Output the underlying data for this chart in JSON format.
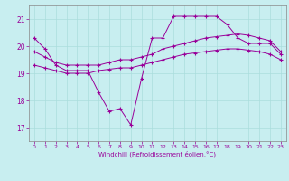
{
  "title": "",
  "xlabel": "Windchill (Refroidissement éolien,°C)",
  "background_color": "#c8eef0",
  "line_color": "#990099",
  "grid_color": "#aadddd",
  "xlim": [
    -0.5,
    23.5
  ],
  "ylim": [
    16.5,
    21.5
  ],
  "xticks": [
    0,
    1,
    2,
    3,
    4,
    5,
    6,
    7,
    8,
    9,
    10,
    11,
    12,
    13,
    14,
    15,
    16,
    17,
    18,
    19,
    20,
    21,
    22,
    23
  ],
  "yticks": [
    17,
    18,
    19,
    20,
    21
  ],
  "line1_x": [
    0,
    1,
    2,
    3,
    4,
    5,
    6,
    7,
    8,
    9,
    10,
    11,
    12,
    13,
    14,
    15,
    16,
    17,
    18,
    19,
    20,
    21,
    22,
    23
  ],
  "line1_y": [
    20.3,
    19.9,
    19.3,
    19.1,
    19.1,
    19.1,
    18.3,
    17.6,
    17.7,
    17.1,
    18.8,
    20.3,
    20.3,
    21.1,
    21.1,
    21.1,
    21.1,
    21.1,
    20.8,
    20.3,
    20.1,
    20.1,
    20.1,
    19.7
  ],
  "line2_x": [
    0,
    1,
    2,
    3,
    4,
    5,
    6,
    7,
    8,
    9,
    10,
    11,
    12,
    13,
    14,
    15,
    16,
    17,
    18,
    19,
    20,
    21,
    22,
    23
  ],
  "line2_y": [
    19.8,
    19.6,
    19.4,
    19.3,
    19.3,
    19.3,
    19.3,
    19.4,
    19.5,
    19.5,
    19.6,
    19.7,
    19.9,
    20.0,
    20.1,
    20.2,
    20.3,
    20.35,
    20.4,
    20.45,
    20.4,
    20.3,
    20.2,
    19.8
  ],
  "line3_x": [
    0,
    1,
    2,
    3,
    4,
    5,
    6,
    7,
    8,
    9,
    10,
    11,
    12,
    13,
    14,
    15,
    16,
    17,
    18,
    19,
    20,
    21,
    22,
    23
  ],
  "line3_y": [
    19.3,
    19.2,
    19.1,
    19.0,
    19.0,
    19.0,
    19.1,
    19.15,
    19.2,
    19.2,
    19.3,
    19.4,
    19.5,
    19.6,
    19.7,
    19.75,
    19.8,
    19.85,
    19.9,
    19.9,
    19.85,
    19.8,
    19.7,
    19.5
  ]
}
